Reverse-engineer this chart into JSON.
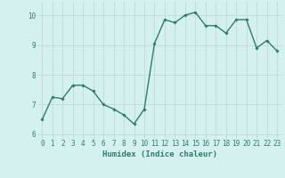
{
  "x": [
    0,
    1,
    2,
    3,
    4,
    5,
    6,
    7,
    8,
    9,
    10,
    11,
    12,
    13,
    14,
    15,
    16,
    17,
    18,
    19,
    20,
    21,
    22,
    23
  ],
  "y": [
    6.5,
    7.25,
    7.2,
    7.65,
    7.65,
    7.45,
    7.0,
    6.85,
    6.65,
    6.35,
    6.85,
    9.05,
    9.85,
    9.75,
    10.0,
    10.1,
    9.65,
    9.65,
    9.4,
    9.85,
    9.85,
    8.9,
    9.15,
    8.8
  ],
  "line_color": "#2e7d6e",
  "marker": "D",
  "marker_size": 1.8,
  "line_width": 1.0,
  "xlabel": "Humidex (Indice chaleur)",
  "ylim": [
    5.85,
    10.45
  ],
  "xlim": [
    -0.5,
    23.5
  ],
  "yticks": [
    6,
    7,
    8,
    9,
    10
  ],
  "xticks": [
    0,
    1,
    2,
    3,
    4,
    5,
    6,
    7,
    8,
    9,
    10,
    11,
    12,
    13,
    14,
    15,
    16,
    17,
    18,
    19,
    20,
    21,
    22,
    23
  ],
  "bg_color": "#d4f0ef",
  "grid_color": "#c0dada",
  "tick_color": "#2e7d6e",
  "label_color": "#2e7d6e",
  "xlabel_fontsize": 6.5,
  "tick_fontsize": 5.5
}
